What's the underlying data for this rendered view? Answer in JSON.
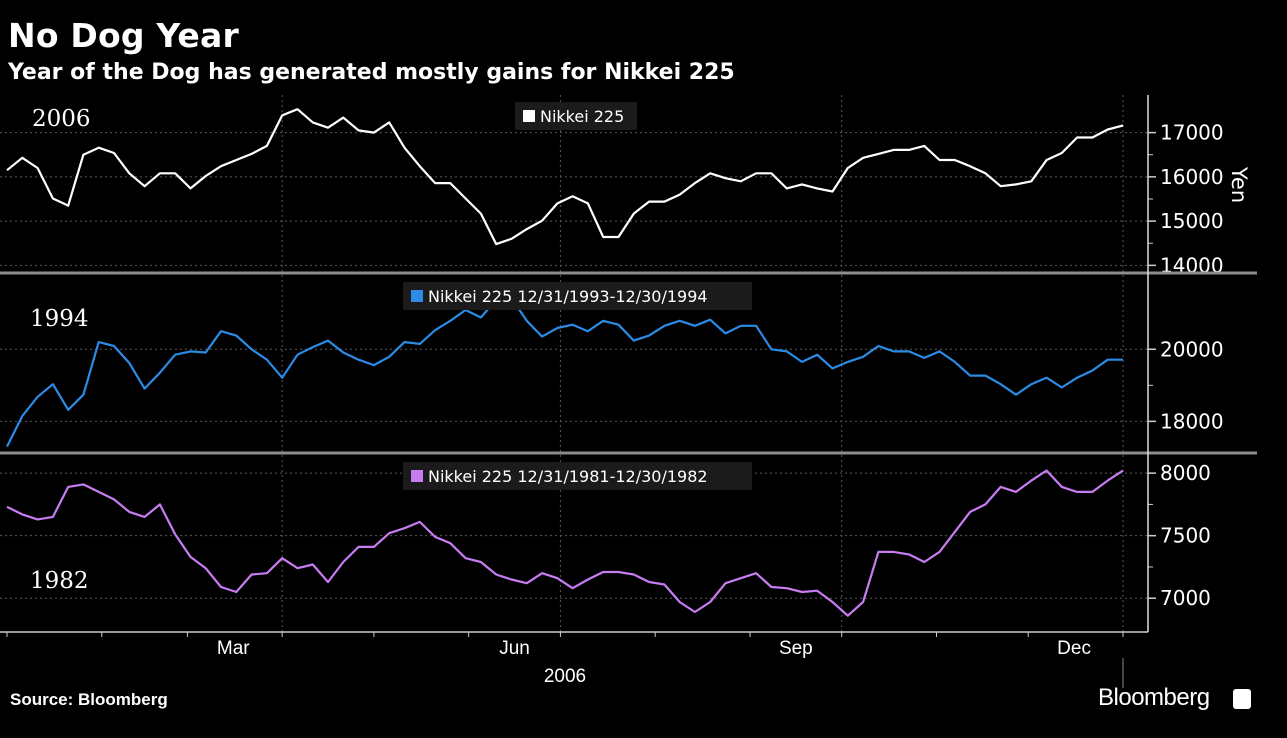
{
  "header": {
    "title": "No Dog Year",
    "subtitle": "Year of the Dog has generated mostly gains for Nikkei 225"
  },
  "footer": {
    "source": "Source: Bloomberg",
    "brand": "Bloomberg"
  },
  "colors": {
    "s2006": "#ffffff",
    "s1994": "#2b8be6",
    "s1982": "#c77cf2",
    "grid": "#5a5a5a",
    "separator": "#8c8c8c"
  },
  "chart_data": {
    "type": "line",
    "x_unit": "day of year",
    "x_start_day": 0,
    "x_step_days": 5,
    "xlim": [
      0,
      365
    ],
    "xaxis": {
      "ticks": [
        {
          "label": "Mar",
          "day": 74
        },
        {
          "label": "Jun",
          "day": 166
        },
        {
          "label": "Sep",
          "day": 258
        },
        {
          "label": "Dec",
          "day": 349
        }
      ],
      "year_label": "2006"
    },
    "ylabel": "Yen",
    "panels": [
      {
        "year_label": "2006",
        "legend": "Nikkei 225",
        "ylim": [
          13850,
          17850
        ],
        "yticks": [
          14000,
          15000,
          16000,
          17000
        ],
        "yticks_labels": [
          "14000",
          "15000",
          "16000",
          "17000"
        ],
        "values": [
          16150,
          16430,
          16200,
          15510,
          15350,
          16500,
          16660,
          16540,
          16080,
          15790,
          16080,
          16080,
          15740,
          16020,
          16240,
          16380,
          16520,
          16700,
          17390,
          17530,
          17230,
          17110,
          17340,
          17050,
          17000,
          17230,
          16660,
          16240,
          15860,
          15860,
          15510,
          15170,
          14480,
          14600,
          14820,
          15010,
          15400,
          15560,
          15400,
          14640,
          14640,
          15170,
          15440,
          15440,
          15600,
          15860,
          16080,
          15970,
          15900,
          16080,
          16080,
          15740,
          15830,
          15740,
          15670,
          16200,
          16430,
          16520,
          16610,
          16610,
          16700,
          16380,
          16380,
          16240,
          16080,
          15790,
          15830,
          15900,
          16380,
          16540,
          16890,
          16890,
          17070,
          17160
        ]
      },
      {
        "year_label": "1994",
        "legend": "Nikkei 225 12/31/1993-12/30/1994",
        "ylim": [
          17150,
          22060
        ],
        "yticks": [
          18000,
          20000
        ],
        "yticks_labels": [
          "18000",
          "20000"
        ],
        "values": [
          17300,
          18150,
          18680,
          19030,
          18320,
          18740,
          20200,
          20090,
          19620,
          18910,
          19350,
          19850,
          19940,
          19910,
          20500,
          20380,
          20000,
          19710,
          19210,
          19850,
          20060,
          20240,
          19910,
          19710,
          19560,
          19790,
          20200,
          20150,
          20530,
          20790,
          21090,
          20880,
          21380,
          21410,
          20790,
          20350,
          20590,
          20680,
          20500,
          20790,
          20680,
          20240,
          20380,
          20650,
          20790,
          20650,
          20820,
          20440,
          20650,
          20650,
          20000,
          19940,
          19650,
          19850,
          19470,
          19650,
          19790,
          20090,
          19940,
          19940,
          19760,
          19940,
          19650,
          19270,
          19270,
          19030,
          18740,
          19030,
          19210,
          18940,
          19210,
          19410,
          19710,
          19710
        ]
      },
      {
        "year_label": "1982",
        "legend": "Nikkei 225 12/31/1981-12/30/1982",
        "ylim": [
          6730,
          8145
        ],
        "yticks": [
          7000,
          7500,
          8000
        ],
        "yticks_labels": [
          "7000",
          "7500",
          "8000"
        ],
        "values": [
          7730,
          7670,
          7630,
          7650,
          7890,
          7910,
          7850,
          7790,
          7690,
          7650,
          7750,
          7510,
          7330,
          7240,
          7090,
          7050,
          7190,
          7200,
          7320,
          7240,
          7270,
          7130,
          7290,
          7410,
          7410,
          7520,
          7560,
          7610,
          7490,
          7440,
          7320,
          7290,
          7190,
          7150,
          7120,
          7200,
          7160,
          7080,
          7150,
          7210,
          7210,
          7190,
          7130,
          7110,
          6970,
          6890,
          6970,
          7120,
          7160,
          7200,
          7090,
          7080,
          7050,
          7060,
          6970,
          6860,
          6970,
          7370,
          7370,
          7350,
          7290,
          7370,
          7530,
          7690,
          7750,
          7890,
          7850,
          7940,
          8020,
          7890,
          7850,
          7850,
          7940,
          8020
        ]
      }
    ]
  }
}
